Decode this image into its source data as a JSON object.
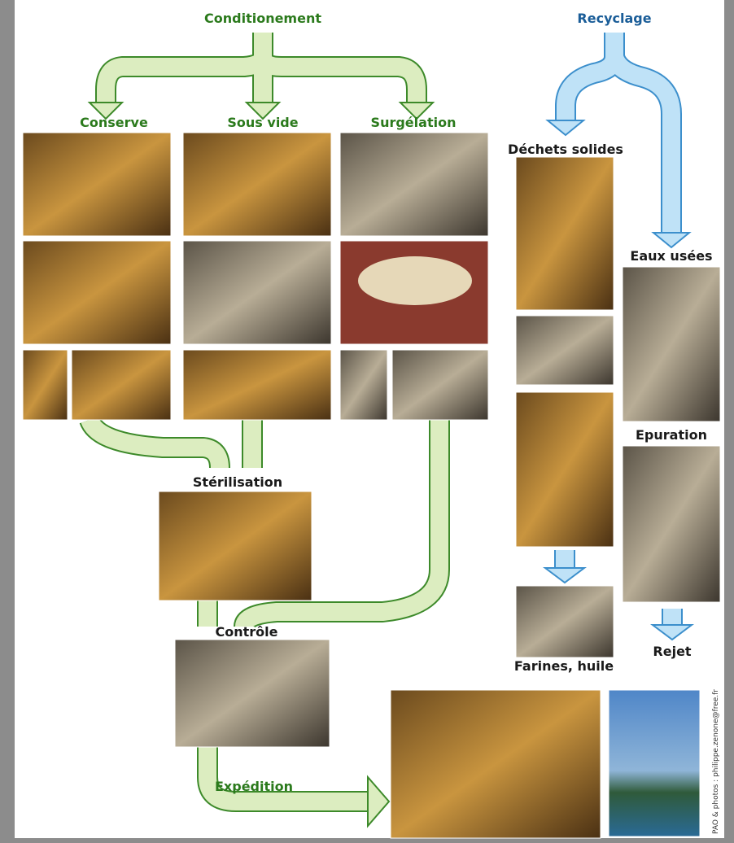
{
  "header": {
    "left": "Conditionement",
    "right": "Recyclage"
  },
  "branches": {
    "conserve": "Conserve",
    "sous_vide": "Sous vide",
    "surgelation": "Surgélation",
    "dechets": "Déchets solides",
    "eaux": "Eaux usées",
    "sterilisation": "Stérilisation",
    "epuration": "Epuration",
    "controle": "Contrôle",
    "farines": "Farines, huile",
    "rejet": "Rejet",
    "expedition": "Expédition"
  },
  "credit": "PAO & photos : philippe.zenone@free.fr"
}
